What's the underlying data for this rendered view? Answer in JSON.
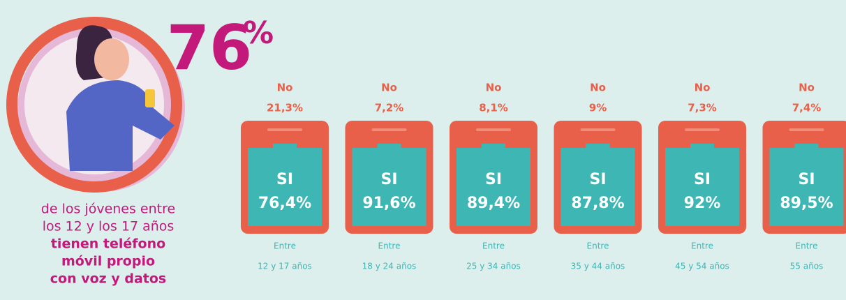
{
  "stat": {
    "number": "76",
    "unit": "%"
  },
  "description": [
    "de los jóvenes entre",
    "los 12 y los 17 años"
  ],
  "highlight": [
    "tienen teléfono",
    "móvil propio",
    "con voz y datos"
  ],
  "groups": [
    {
      "no_label": "No",
      "no": "21,3%",
      "si_label": "SI",
      "si": "76,4%",
      "prefix": "Entre",
      "range": "12 y 17 años"
    },
    {
      "no_label": "No",
      "no": "7,2%",
      "si_label": "SI",
      "si": "91,6%",
      "prefix": "Entre",
      "range": "18 y  24 años"
    },
    {
      "no_label": "No",
      "no": "8,1%",
      "si_label": "SI",
      "si": "89,4%",
      "prefix": "Entre",
      "range": "25 y 34 años"
    },
    {
      "no_label": "No",
      "no": "9%",
      "si_label": "SI",
      "si": "87,8%",
      "prefix": "Entre",
      "range": "35 y 44 años"
    },
    {
      "no_label": "No",
      "no": "7,3%",
      "si_label": "SI",
      "si": "92%",
      "prefix": "Entre",
      "range": "45 y 54 años"
    },
    {
      "no_label": "No",
      "no": "7,4%",
      "si_label": "SI",
      "si": "89,5%",
      "prefix": "Entre",
      "range": "55 años"
    }
  ]
}
